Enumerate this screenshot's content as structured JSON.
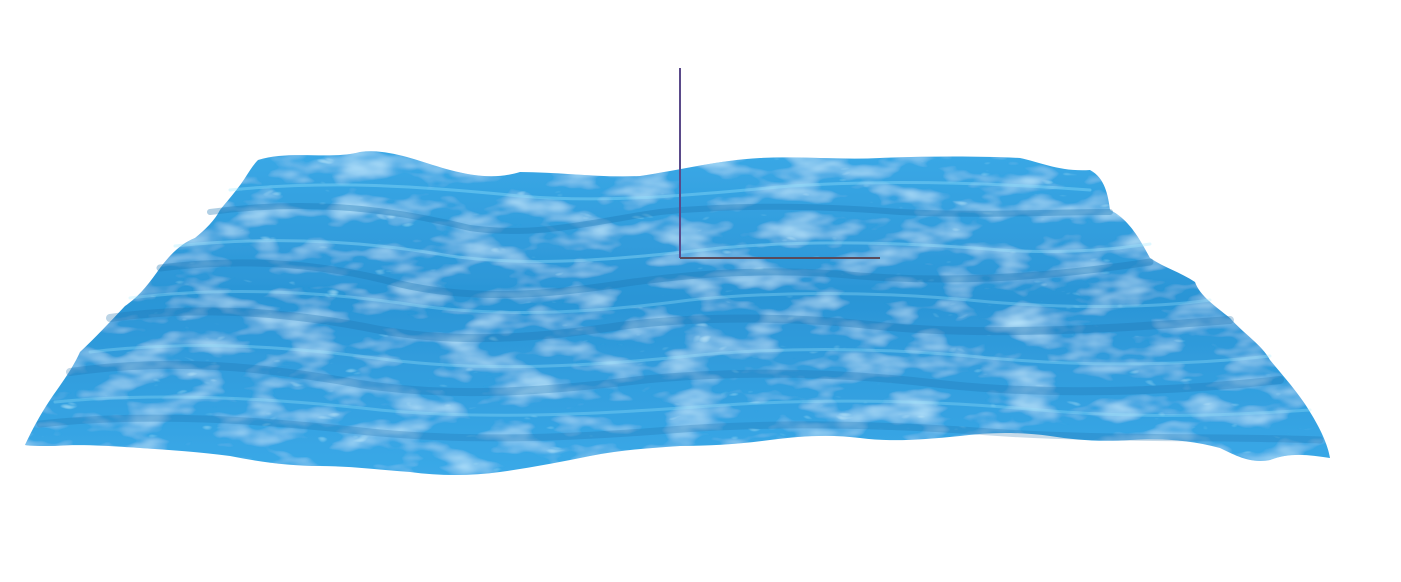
{
  "scene": {
    "background_color": "#ffffff",
    "object": "water-surface",
    "water_colors": {
      "deep": "#1f7fc0",
      "base": "#2f9ee0",
      "light": "#52c4f2",
      "highlight": "#8fe6ff"
    },
    "axes_helper": {
      "visible": true,
      "x_axis_color": "#5a4a5a",
      "y_axis_color": "#5a4a8a"
    }
  }
}
